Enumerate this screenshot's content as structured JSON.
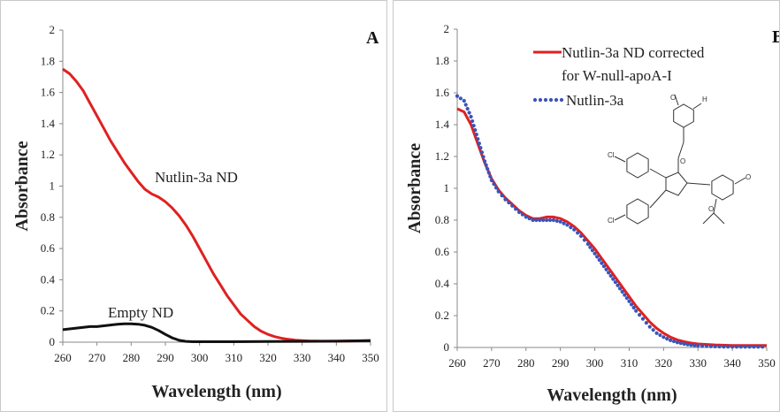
{
  "chart_data": [
    {
      "type": "line",
      "panel_label": "A",
      "xlabel": "Wavelength (nm)",
      "ylabel": "Absorbance",
      "xlim": [
        260,
        350
      ],
      "ylim": [
        0,
        2
      ],
      "xticks": [
        "260",
        "270",
        "280",
        "290",
        "300",
        "310",
        "320",
        "330",
        "340",
        "350"
      ],
      "yticks": [
        "0",
        "0.2",
        "0.4",
        "0.6",
        "0.8",
        "1",
        "1.2",
        "1.4",
        "1.6",
        "1.8",
        "2"
      ],
      "grid": false,
      "annotations": [
        "Nutlin-3a ND",
        "Empty ND"
      ],
      "series": [
        {
          "name": "Nutlin-3a ND",
          "color": "#e02020",
          "x": [
            260,
            262,
            264,
            266,
            268,
            270,
            272,
            274,
            276,
            278,
            280,
            282,
            284,
            286,
            288,
            290,
            292,
            294,
            296,
            298,
            300,
            302,
            304,
            306,
            308,
            310,
            312,
            314,
            316,
            318,
            320,
            322,
            324,
            326,
            328,
            330,
            332,
            334,
            336,
            338,
            340,
            345,
            350
          ],
          "y": [
            1.75,
            1.72,
            1.67,
            1.61,
            1.53,
            1.45,
            1.37,
            1.29,
            1.22,
            1.15,
            1.09,
            1.03,
            0.98,
            0.95,
            0.93,
            0.9,
            0.86,
            0.81,
            0.75,
            0.68,
            0.6,
            0.52,
            0.44,
            0.37,
            0.3,
            0.24,
            0.18,
            0.14,
            0.1,
            0.07,
            0.05,
            0.035,
            0.025,
            0.018,
            0.013,
            0.01,
            0.008,
            0.007,
            0.006,
            0.006,
            0.006,
            0.008,
            0.01
          ]
        },
        {
          "name": "Empty ND",
          "color": "#111111",
          "x": [
            260,
            262,
            264,
            266,
            268,
            270,
            272,
            274,
            276,
            278,
            280,
            282,
            284,
            286,
            288,
            290,
            292,
            294,
            296,
            298,
            300,
            310,
            320,
            330,
            340,
            350
          ],
          "y": [
            0.08,
            0.085,
            0.09,
            0.095,
            0.1,
            0.1,
            0.105,
            0.11,
            0.115,
            0.118,
            0.118,
            0.115,
            0.108,
            0.095,
            0.075,
            0.05,
            0.028,
            0.012,
            0.005,
            0.003,
            0.003,
            0.003,
            0.004,
            0.005,
            0.006,
            0.01
          ]
        }
      ]
    },
    {
      "type": "line",
      "panel_label": "B",
      "xlabel": "Wavelength (nm)",
      "ylabel": "Absorbance",
      "xlim": [
        260,
        350
      ],
      "ylim": [
        0,
        2
      ],
      "xticks": [
        "260",
        "270",
        "280",
        "290",
        "300",
        "310",
        "320",
        "330",
        "340",
        "350"
      ],
      "yticks": [
        "0",
        "0.2",
        "0.4",
        "0.6",
        "0.8",
        "1",
        "1.2",
        "1.4",
        "1.6",
        "1.8",
        "2"
      ],
      "grid": false,
      "legend": [
        "Nutlin-3a ND corrected",
        "for W-null-apoA-I",
        "Nutlin-3a"
      ],
      "legend_position": "top-right",
      "series": [
        {
          "name": "Nutlin-3a ND corrected for W-null-apoA-I",
          "color": "#e02020",
          "style": "solid",
          "x": [
            260,
            262,
            264,
            266,
            268,
            270,
            272,
            274,
            276,
            278,
            280,
            282,
            284,
            286,
            288,
            290,
            292,
            294,
            296,
            298,
            300,
            302,
            304,
            306,
            308,
            310,
            312,
            314,
            316,
            318,
            320,
            322,
            324,
            326,
            328,
            330,
            335,
            340,
            345,
            350
          ],
          "y": [
            1.5,
            1.48,
            1.4,
            1.28,
            1.16,
            1.06,
            0.99,
            0.94,
            0.9,
            0.86,
            0.83,
            0.81,
            0.81,
            0.82,
            0.82,
            0.81,
            0.79,
            0.76,
            0.72,
            0.67,
            0.62,
            0.56,
            0.5,
            0.44,
            0.38,
            0.32,
            0.26,
            0.21,
            0.16,
            0.12,
            0.09,
            0.065,
            0.048,
            0.036,
            0.028,
            0.022,
            0.016,
            0.013,
            0.012,
            0.012
          ]
        },
        {
          "name": "Nutlin-3a",
          "color": "#3b54b8",
          "style": "dotted",
          "x": [
            260,
            262,
            264,
            266,
            268,
            270,
            272,
            274,
            276,
            278,
            280,
            282,
            284,
            286,
            288,
            290,
            292,
            294,
            296,
            298,
            300,
            302,
            304,
            306,
            308,
            310,
            312,
            314,
            316,
            318,
            320,
            322,
            324,
            326,
            328,
            330,
            335,
            340,
            345,
            350
          ],
          "y": [
            1.58,
            1.55,
            1.45,
            1.31,
            1.17,
            1.05,
            0.98,
            0.93,
            0.89,
            0.85,
            0.82,
            0.8,
            0.8,
            0.8,
            0.8,
            0.79,
            0.77,
            0.74,
            0.7,
            0.65,
            0.59,
            0.53,
            0.47,
            0.41,
            0.35,
            0.29,
            0.23,
            0.18,
            0.13,
            0.09,
            0.065,
            0.045,
            0.032,
            0.022,
            0.015,
            0.01,
            0.006,
            0.004,
            0.004,
            0.004
          ]
        }
      ]
    }
  ]
}
